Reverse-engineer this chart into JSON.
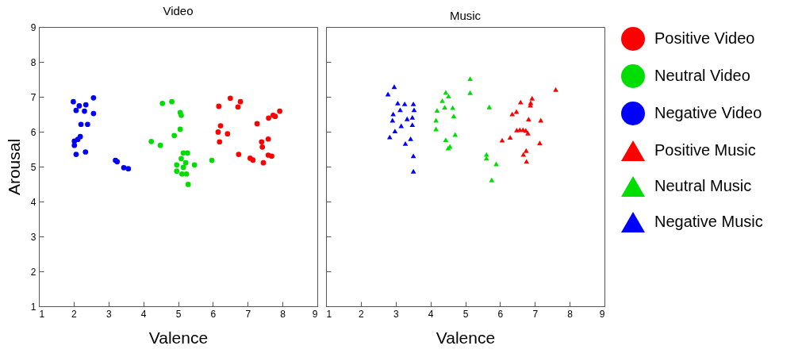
{
  "chart_data": [
    {
      "type": "scatter",
      "title": "Video",
      "xlabel": "Valence",
      "ylabel": "Arousal",
      "xlim": [
        1,
        9
      ],
      "ylim": [
        1,
        9
      ],
      "xticks": [
        1,
        2,
        3,
        4,
        5,
        6,
        7,
        8,
        9
      ],
      "yticks": [
        1,
        2,
        3,
        4,
        5,
        6,
        7,
        8,
        9
      ],
      "marker": "circle",
      "legend": "right",
      "series": [
        {
          "name": "Positive Video",
          "color": "#ff0000",
          "x": [
            6.5,
            6.79,
            6.17,
            6.72,
            7.92,
            7.73,
            7.79,
            7.6,
            7.27,
            6.22,
            6.15,
            6.42,
            6.19,
            7.4,
            7.59,
            7.42,
            6.74,
            7.07,
            7.15,
            7.59,
            7.69,
            7.45
          ],
          "values": [
            6.96,
            6.86,
            6.73,
            6.71,
            6.59,
            6.47,
            6.44,
            6.39,
            6.23,
            6.17,
            5.99,
            5.94,
            5.71,
            5.71,
            5.79,
            5.56,
            5.35,
            5.24,
            5.19,
            5.33,
            5.3,
            5.11
          ]
        },
        {
          "name": "Neutral Video",
          "color": "#00dd00",
          "x": [
            4.55,
            4.82,
            5.06,
            5.09,
            5.06,
            4.89,
            4.23,
            4.49,
            5.15,
            5.27,
            5.09,
            5.22,
            4.96,
            5.47,
            5.15,
            4.96,
            5.11,
            5.24,
            5.29,
            5.97
          ],
          "values": [
            6.81,
            6.86,
            6.55,
            6.47,
            6.07,
            5.89,
            5.72,
            5.61,
            5.39,
            5.39,
            5.23,
            5.11,
            5.05,
            5.05,
            4.98,
            4.87,
            4.79,
            4.79,
            4.49,
            5.18
          ]
        },
        {
          "name": "Negative Video",
          "color": "#0000ff",
          "x": [
            2.57,
            1.99,
            2.16,
            2.35,
            2.07,
            2.31,
            2.57,
            2.21,
            2.4,
            2.19,
            2.12,
            2.02,
            2.02,
            2.07,
            2.34,
            3.2,
            3.25,
            3.44,
            3.57
          ],
          "values": [
            6.97,
            6.86,
            6.74,
            6.77,
            6.61,
            6.59,
            6.52,
            6.21,
            6.21,
            5.86,
            5.78,
            5.73,
            5.61,
            5.35,
            5.42,
            5.18,
            5.14,
            4.97,
            4.94
          ]
        }
      ]
    },
    {
      "type": "scatter",
      "title": "Music",
      "xlabel": "Valence",
      "xlim": [
        1,
        9
      ],
      "ylim": [
        1,
        9
      ],
      "xticks": [
        1,
        2,
        3,
        4,
        5,
        6,
        7,
        8,
        9
      ],
      "yticks": [
        1,
        2,
        3,
        4,
        5,
        6,
        7,
        8,
        9
      ],
      "tick_labels": "x",
      "marker": "triangle",
      "legend": "right",
      "series": [
        {
          "name": "Positive Music",
          "color": "#ff0000",
          "x": [
            7.6,
            6.92,
            6.59,
            6.88,
            6.87,
            6.47,
            6.35,
            6.82,
            7.17,
            6.48,
            6.57,
            6.66,
            6.74,
            6.8,
            6.29,
            6.06,
            7.14,
            6.75,
            6.67,
            6.76
          ],
          "values": [
            7.21,
            6.96,
            6.85,
            6.83,
            6.76,
            6.58,
            6.51,
            6.36,
            6.33,
            6.05,
            6.06,
            6.06,
            6.04,
            5.96,
            5.84,
            5.76,
            5.68,
            5.46,
            5.35,
            5.15
          ]
        },
        {
          "name": "Neutral Music",
          "color": "#00dd00",
          "x": [
            5.14,
            5.14,
            4.44,
            4.52,
            4.34,
            4.41,
            4.64,
            4.19,
            4.67,
            4.16,
            4.16,
            4.71,
            4.44,
            4.56,
            4.51,
            5.69,
            5.61,
            5.61,
            5.89,
            5.76
          ],
          "values": [
            7.52,
            7.12,
            7.13,
            7.02,
            6.89,
            6.7,
            6.69,
            6.61,
            6.45,
            6.33,
            6.08,
            5.92,
            5.77,
            5.58,
            5.53,
            6.71,
            5.35,
            5.24,
            5.08,
            4.62
          ]
        },
        {
          "name": "Negative Music",
          "color": "#0000ff",
          "x": [
            2.96,
            2.78,
            3.06,
            3.26,
            3.51,
            3.13,
            3.53,
            2.93,
            2.91,
            3.33,
            3.48,
            3.48,
            3.16,
            2.98,
            2.83,
            3.43,
            3.28,
            3.51,
            3.51
          ],
          "values": [
            7.29,
            7.08,
            6.82,
            6.8,
            6.8,
            6.63,
            6.63,
            6.51,
            6.33,
            6.37,
            6.41,
            6.2,
            6.17,
            6.02,
            5.85,
            5.8,
            5.66,
            5.31,
            4.87
          ]
        }
      ]
    }
  ]
}
